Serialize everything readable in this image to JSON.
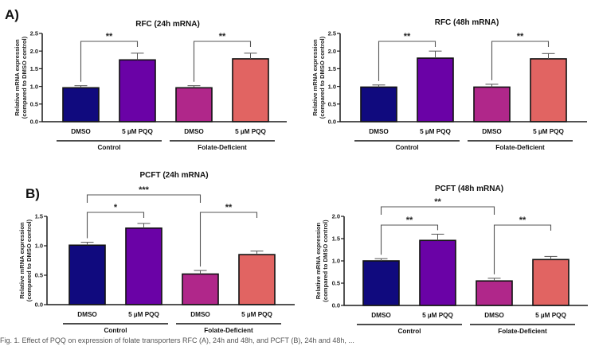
{
  "figure": {
    "panels": [
      {
        "label": "A)"
      },
      {
        "label": "B)"
      }
    ],
    "caption_partial": "Fig. 1. Effect of PQQ on expression of folate transporters RFC (A), 24h and 48h, and PCFT (B), 24h and 48h, ..."
  },
  "colors": {
    "DMSO_control": "#100a7e",
    "PQQ_control": "#6a02a6",
    "DMSO_folate_deficient": "#b0278a",
    "PQQ_folate_deficient": "#e16462",
    "axis": "#1a1a1a",
    "bracket": "#555555"
  },
  "chart_data": [
    {
      "type": "bar",
      "panel": "A)",
      "title": "RFC (24h mRNA)",
      "ylabel": [
        "Relative mRNA expression",
        "(compared to DMSO control)"
      ],
      "xlabel": "",
      "categories": [
        "DMSO",
        "5 µM PQQ",
        "DMSO",
        "5 µM PQQ"
      ],
      "groups": [
        {
          "label": "Control",
          "members": [
            0,
            1
          ]
        },
        {
          "label": "Folate-Deficient",
          "members": [
            2,
            3
          ]
        }
      ],
      "values": [
        0.96,
        1.75,
        0.96,
        1.78
      ],
      "error_upper": [
        1.02,
        1.94,
        1.02,
        1.94
      ],
      "ylim": [
        0,
        2.5
      ],
      "yticks": [
        "0.0",
        "0.5",
        "1.0",
        "1.5",
        "2.0",
        "2.5"
      ],
      "significance": [
        {
          "from": 0,
          "to": 1,
          "label": "**",
          "level": 1
        },
        {
          "from": 2,
          "to": 3,
          "label": "**",
          "level": 1
        }
      ],
      "grid": false,
      "legend": "none"
    },
    {
      "type": "bar",
      "panel": "",
      "title": "RFC (48h mRNA)",
      "ylabel": [
        "Relative mRNA expression",
        "(compared to DMSO control)"
      ],
      "xlabel": "",
      "categories": [
        "DMSO",
        "5 µM PQQ",
        "DMSO",
        "5 µM PQQ"
      ],
      "groups": [
        {
          "label": "Control",
          "members": [
            0,
            1
          ]
        },
        {
          "label": "Folate-Deficient",
          "members": [
            2,
            3
          ]
        }
      ],
      "values": [
        0.98,
        1.8,
        0.98,
        1.78
      ],
      "error_upper": [
        1.04,
        2.0,
        1.06,
        1.93
      ],
      "ylim": [
        0,
        2.5
      ],
      "yticks": [
        "0.0",
        "0.5",
        "1.0",
        "1.5",
        "2.0",
        "2.5"
      ],
      "significance": [
        {
          "from": 0,
          "to": 1,
          "label": "**",
          "level": 1
        },
        {
          "from": 2,
          "to": 3,
          "label": "**",
          "level": 1
        }
      ],
      "grid": false,
      "legend": "none"
    },
    {
      "type": "bar",
      "panel": "B)",
      "title": "PCFT (24h mRNA)",
      "ylabel": [
        "Relative mRNA expression",
        "(compared to DMSO control)"
      ],
      "xlabel": "",
      "categories": [
        "DMSO",
        "5 µM PQQ",
        "DMSO",
        "5 µM PQQ"
      ],
      "groups": [
        {
          "label": "Control",
          "members": [
            0,
            1
          ]
        },
        {
          "label": "Folate-Deficient",
          "members": [
            2,
            3
          ]
        }
      ],
      "values": [
        1.01,
        1.3,
        0.52,
        0.85
      ],
      "error_upper": [
        1.06,
        1.38,
        0.58,
        0.91
      ],
      "ylim": [
        0,
        1.5
      ],
      "yticks": [
        "0.0",
        "0.5",
        "1.0",
        "1.5"
      ],
      "significance": [
        {
          "from": 0,
          "to": 1,
          "label": "*",
          "level": 1
        },
        {
          "from": 2,
          "to": 3,
          "label": "**",
          "level": 1
        },
        {
          "from": 0,
          "to": 2,
          "label": "***",
          "level": 2
        }
      ],
      "grid": false,
      "legend": "none"
    },
    {
      "type": "bar",
      "panel": "",
      "title": "PCFT (48h mRNA)",
      "ylabel": [
        "Relative mRNA expression",
        "(compared to DMSO control)"
      ],
      "xlabel": "",
      "categories": [
        "DMSO",
        "5 µM PQQ",
        "DMSO",
        "5 µM PQQ"
      ],
      "groups": [
        {
          "label": "Control",
          "members": [
            0,
            1
          ]
        },
        {
          "label": "Folate-Deficient",
          "members": [
            2,
            3
          ]
        }
      ],
      "values": [
        1.0,
        1.46,
        0.55,
        1.03
      ],
      "error_upper": [
        1.05,
        1.6,
        0.61,
        1.1
      ],
      "ylim": [
        0,
        2.0
      ],
      "yticks": [
        "0.0",
        "0.5",
        "1.0",
        "1.5",
        "2.0"
      ],
      "significance": [
        {
          "from": 0,
          "to": 1,
          "label": "**",
          "level": 1
        },
        {
          "from": 2,
          "to": 3,
          "label": "**",
          "level": 1
        },
        {
          "from": 0,
          "to": 2,
          "label": "**",
          "level": 2
        }
      ],
      "grid": false,
      "legend": "none"
    }
  ]
}
